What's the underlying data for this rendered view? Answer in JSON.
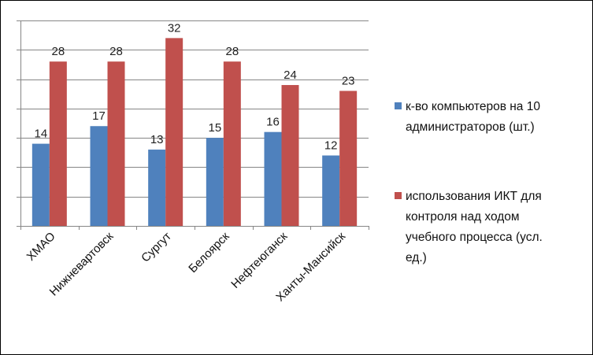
{
  "chart_data": {
    "type": "bar",
    "title": "",
    "xlabel": "",
    "ylabel": "",
    "categories": [
      "ХМАО",
      "Нижневартовск",
      "Сургут",
      "Белоярск",
      "Нефтеюганск",
      "Ханты-Мансийск"
    ],
    "series": [
      {
        "name": "к-во компьютеров на 10 администраторов (шт.)",
        "values": [
          14,
          17,
          13,
          15,
          16,
          12
        ],
        "color": "#4F81BD",
        "legend_lines": [
          "к-во компьютеров на 10",
          "администраторов (шт.)"
        ]
      },
      {
        "name": "использования ИКТ для контроля над ходом учебного процесса (усл. ед.)",
        "values": [
          28,
          28,
          32,
          28,
          24,
          23
        ],
        "color": "#C0504D",
        "legend_lines": [
          "использования ИКТ для",
          "контроля над ходом",
          "учебного процесса (усл.",
          "ед.)"
        ]
      }
    ],
    "ylim": [
      0,
      35
    ],
    "ytick_step": 5,
    "y_tick_labels_visible": false,
    "grid": true,
    "data_labels": true,
    "legend_position": "right"
  }
}
